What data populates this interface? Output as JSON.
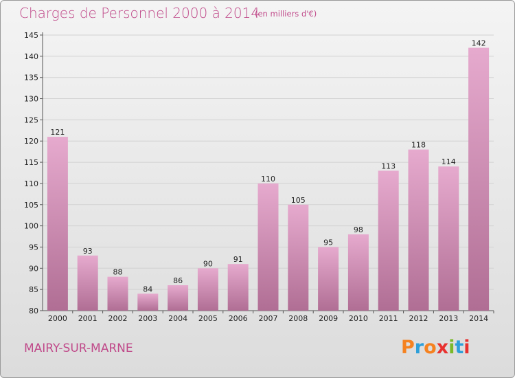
{
  "header": {
    "title": "Charges de Personnel 2000 à 2014",
    "subtitle": "(en milliers d'€)"
  },
  "footer": {
    "city": "MAIRY-SUR-MARNE",
    "logo": "Proxiti"
  },
  "colors": {
    "bar_top": "#e6aace",
    "bar_bottom": "#b06e94",
    "title": "#c04a8a",
    "logo_letters": [
      "#f58220",
      "#2d9fd9",
      "#f58220",
      "#e8312f",
      "#7ab929",
      "#2d9fd9",
      "#e8312f"
    ]
  },
  "chart_data": {
    "type": "bar",
    "categories": [
      "2000",
      "2001",
      "2002",
      "2003",
      "2004",
      "2005",
      "2006",
      "2007",
      "2008",
      "2009",
      "2010",
      "2011",
      "2012",
      "2013",
      "2014"
    ],
    "values": [
      121,
      93,
      88,
      84,
      86,
      90,
      91,
      110,
      105,
      95,
      98,
      113,
      118,
      114,
      142
    ],
    "title": "Charges de Personnel 2000 à 2014",
    "subtitle": "(en milliers d'€)",
    "ylim": [
      80,
      145
    ],
    "yticks": [
      80,
      85,
      90,
      95,
      100,
      105,
      110,
      115,
      120,
      125,
      130,
      135,
      140,
      145
    ],
    "grid": true,
    "data_labels": true
  }
}
